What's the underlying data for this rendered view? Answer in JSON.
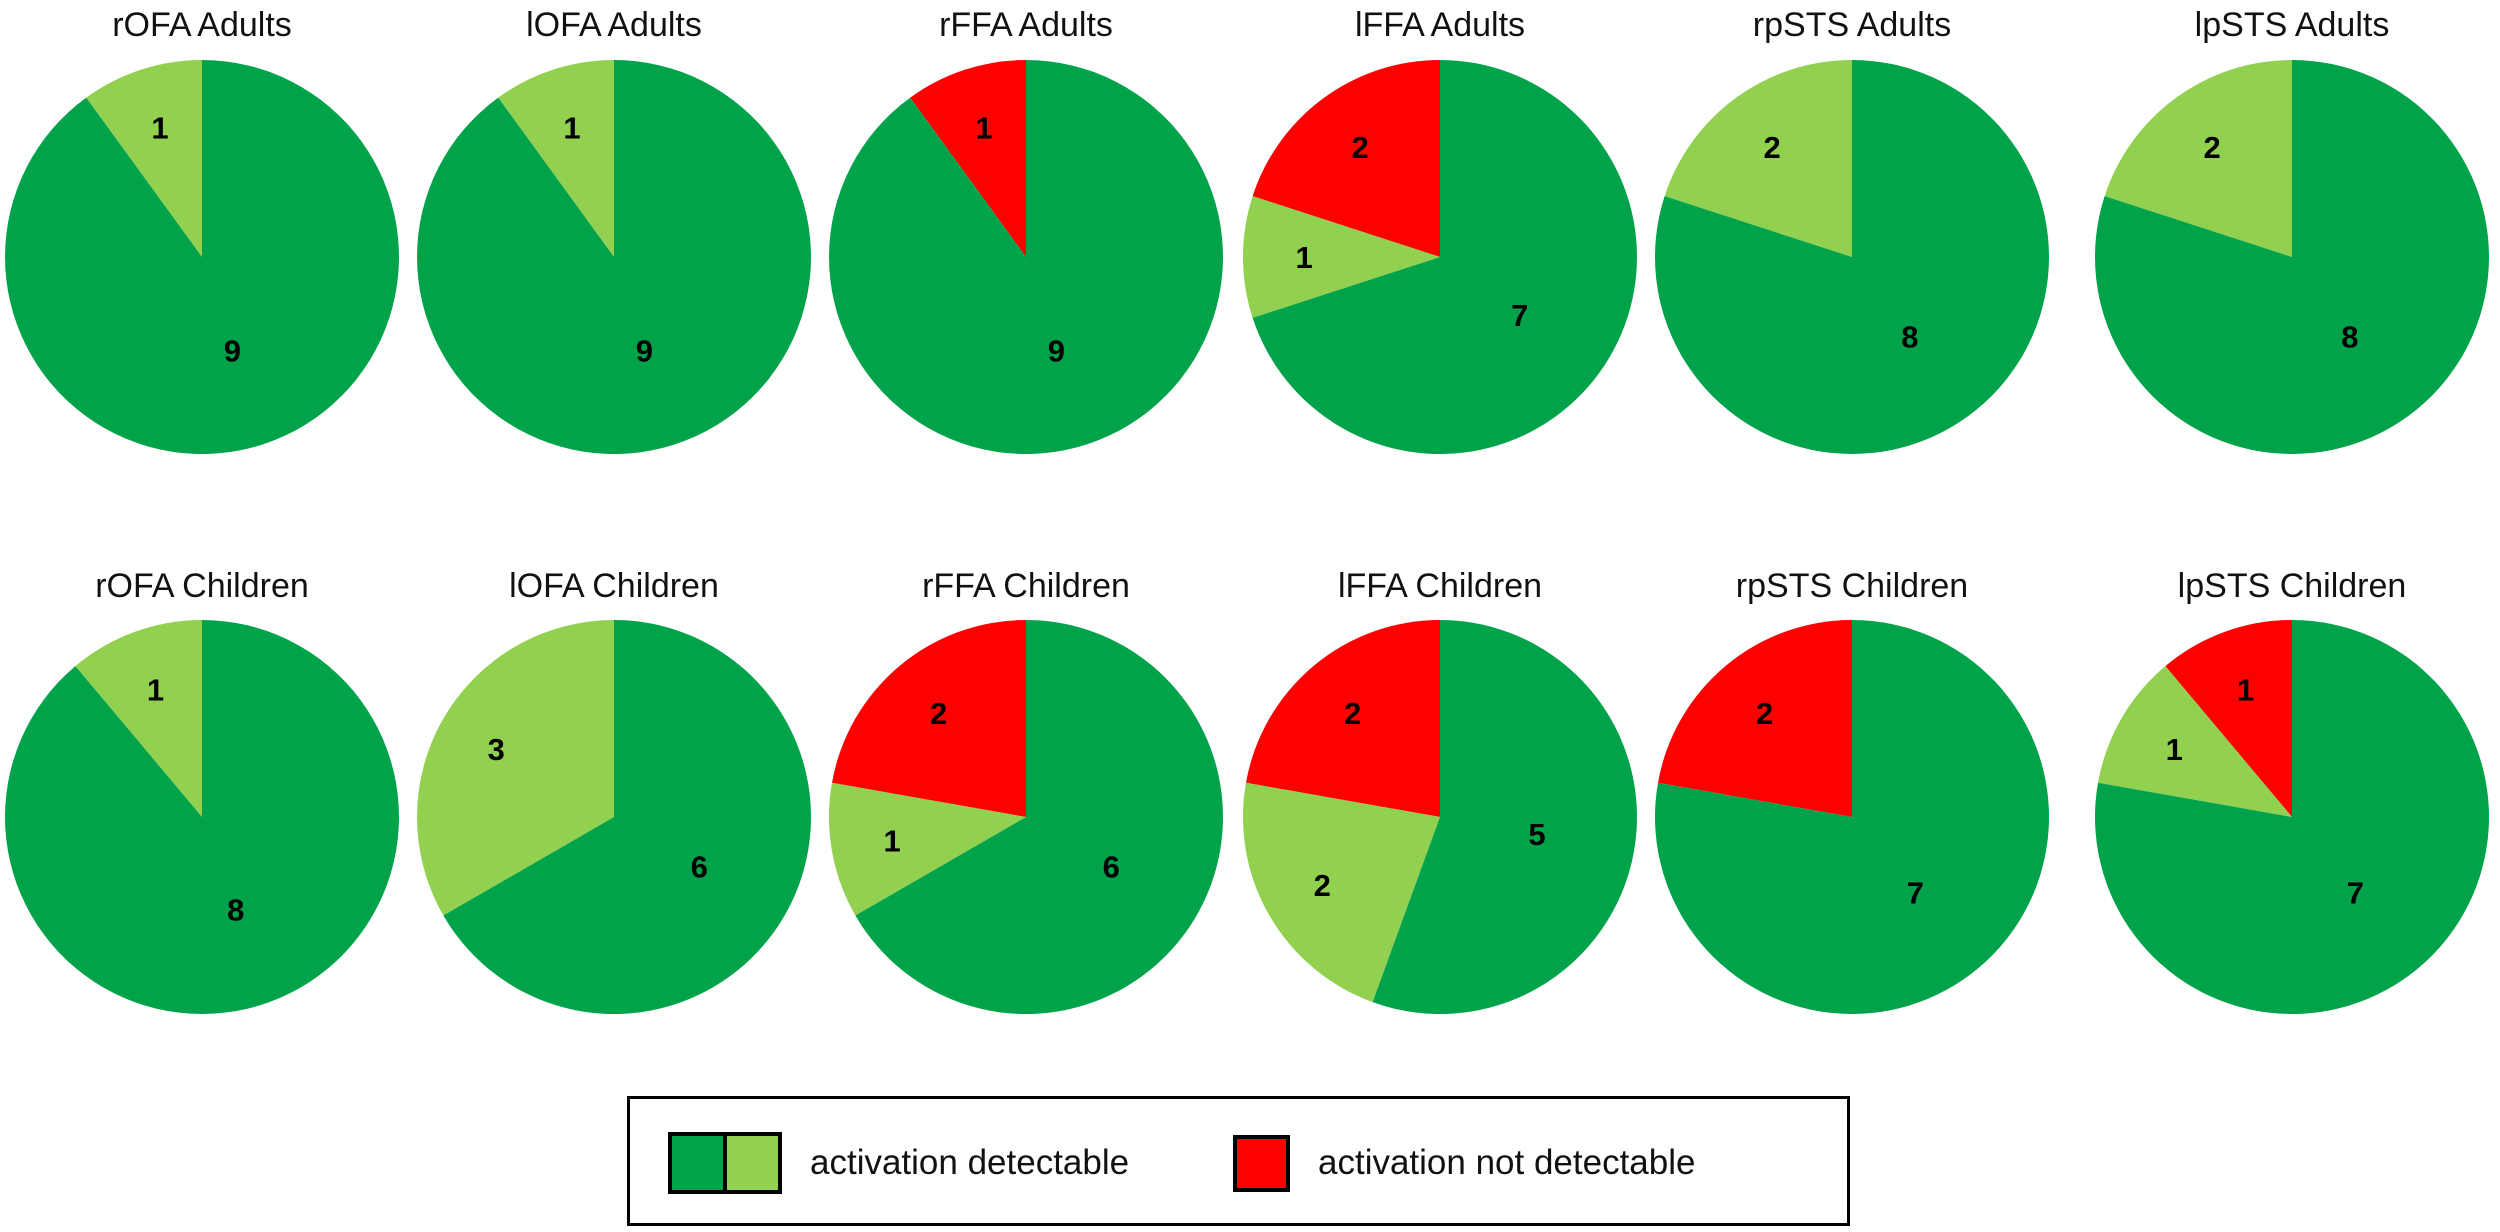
{
  "colors": {
    "detectable_dark": "#00a34a",
    "detectable_light": "#92d050",
    "not_detectable": "#ff0000"
  },
  "chart_data": {
    "type": "pie",
    "series_order": [
      "detectable_dark",
      "detectable_light",
      "not_detectable"
    ],
    "charts": [
      {
        "title": "rOFA Adults",
        "values": {
          "detectable_dark": 9,
          "detectable_light": 1,
          "not_detectable": 0
        }
      },
      {
        "title": "lOFA Adults",
        "values": {
          "detectable_dark": 9,
          "detectable_light": 1,
          "not_detectable": 0
        }
      },
      {
        "title": "rFFA Adults",
        "values": {
          "detectable_dark": 9,
          "detectable_light": 0,
          "not_detectable": 1
        }
      },
      {
        "title": "lFFA Adults",
        "values": {
          "detectable_dark": 7,
          "detectable_light": 1,
          "not_detectable": 2
        }
      },
      {
        "title": "rpSTS Adults",
        "values": {
          "detectable_dark": 8,
          "detectable_light": 2,
          "not_detectable": 0
        }
      },
      {
        "title": "lpSTS Adults",
        "values": {
          "detectable_dark": 8,
          "detectable_light": 2,
          "not_detectable": 0
        }
      },
      {
        "title": "rOFA Children",
        "values": {
          "detectable_dark": 8,
          "detectable_light": 1,
          "not_detectable": 0
        }
      },
      {
        "title": "lOFA Children",
        "values": {
          "detectable_dark": 6,
          "detectable_light": 3,
          "not_detectable": 0
        }
      },
      {
        "title": "rFFA Children",
        "values": {
          "detectable_dark": 6,
          "detectable_light": 1,
          "not_detectable": 2
        }
      },
      {
        "title": "lFFA Children",
        "values": {
          "detectable_dark": 5,
          "detectable_light": 2,
          "not_detectable": 2
        }
      },
      {
        "title": "rpSTS Children",
        "values": {
          "detectable_dark": 7,
          "detectable_light": 0,
          "not_detectable": 2
        }
      },
      {
        "title": "lpSTS Children",
        "values": {
          "detectable_dark": 7,
          "detectable_light": 1,
          "not_detectable": 1
        }
      }
    ],
    "legend": [
      {
        "label": "activation detectable",
        "swatches": [
          "detectable_dark",
          "detectable_light"
        ]
      },
      {
        "label": "activation not detectable",
        "swatches": [
          "not_detectable"
        ]
      }
    ],
    "legend_position": "bottom-center"
  }
}
